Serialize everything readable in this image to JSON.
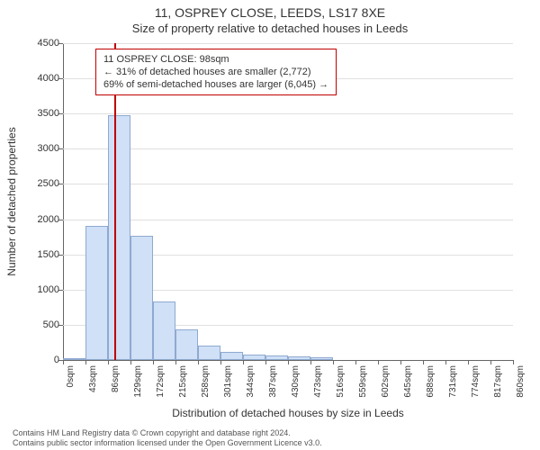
{
  "title": "11, OSPREY CLOSE, LEEDS, LS17 8XE",
  "subtitle": "Size of property relative to detached houses in Leeds",
  "ylabel": "Number of detached properties",
  "xlabel": "Distribution of detached houses by size in Leeds",
  "chart": {
    "type": "histogram",
    "ylim": [
      0,
      4500
    ],
    "yticks": [
      0,
      500,
      1000,
      1500,
      2000,
      2500,
      3000,
      3500,
      4000,
      4500
    ],
    "xticks": [
      0,
      43,
      86,
      129,
      172,
      215,
      258,
      301,
      344,
      387,
      430,
      473,
      516,
      559,
      602,
      645,
      688,
      731,
      774,
      817,
      860
    ],
    "xtick_unit": "sqm",
    "bin_width": 43,
    "bar_fill": "#cfe0f7",
    "bar_stroke": "#8faad0",
    "grid_color": "#e0e0e0",
    "marker_color": "#c00000",
    "background_color": "#ffffff",
    "label_fontsize": 12,
    "tick_fontsize": 11,
    "bars": [
      {
        "x0": 0,
        "count": 20
      },
      {
        "x0": 43,
        "count": 1900
      },
      {
        "x0": 86,
        "count": 3480
      },
      {
        "x0": 129,
        "count": 1760
      },
      {
        "x0": 172,
        "count": 830
      },
      {
        "x0": 215,
        "count": 430
      },
      {
        "x0": 258,
        "count": 210
      },
      {
        "x0": 301,
        "count": 120
      },
      {
        "x0": 344,
        "count": 80
      },
      {
        "x0": 387,
        "count": 60
      },
      {
        "x0": 430,
        "count": 45
      },
      {
        "x0": 473,
        "count": 35
      }
    ],
    "marker_x": 98
  },
  "info_box": {
    "line1": "11 OSPREY CLOSE: 98sqm",
    "line2": "← 31% of detached houses are smaller (2,772)",
    "line3": "69% of semi-detached houses are larger (6,045) →"
  },
  "footer": {
    "line1": "Contains HM Land Registry data © Crown copyright and database right 2024.",
    "line2": "Contains public sector information licensed under the Open Government Licence v3.0."
  }
}
